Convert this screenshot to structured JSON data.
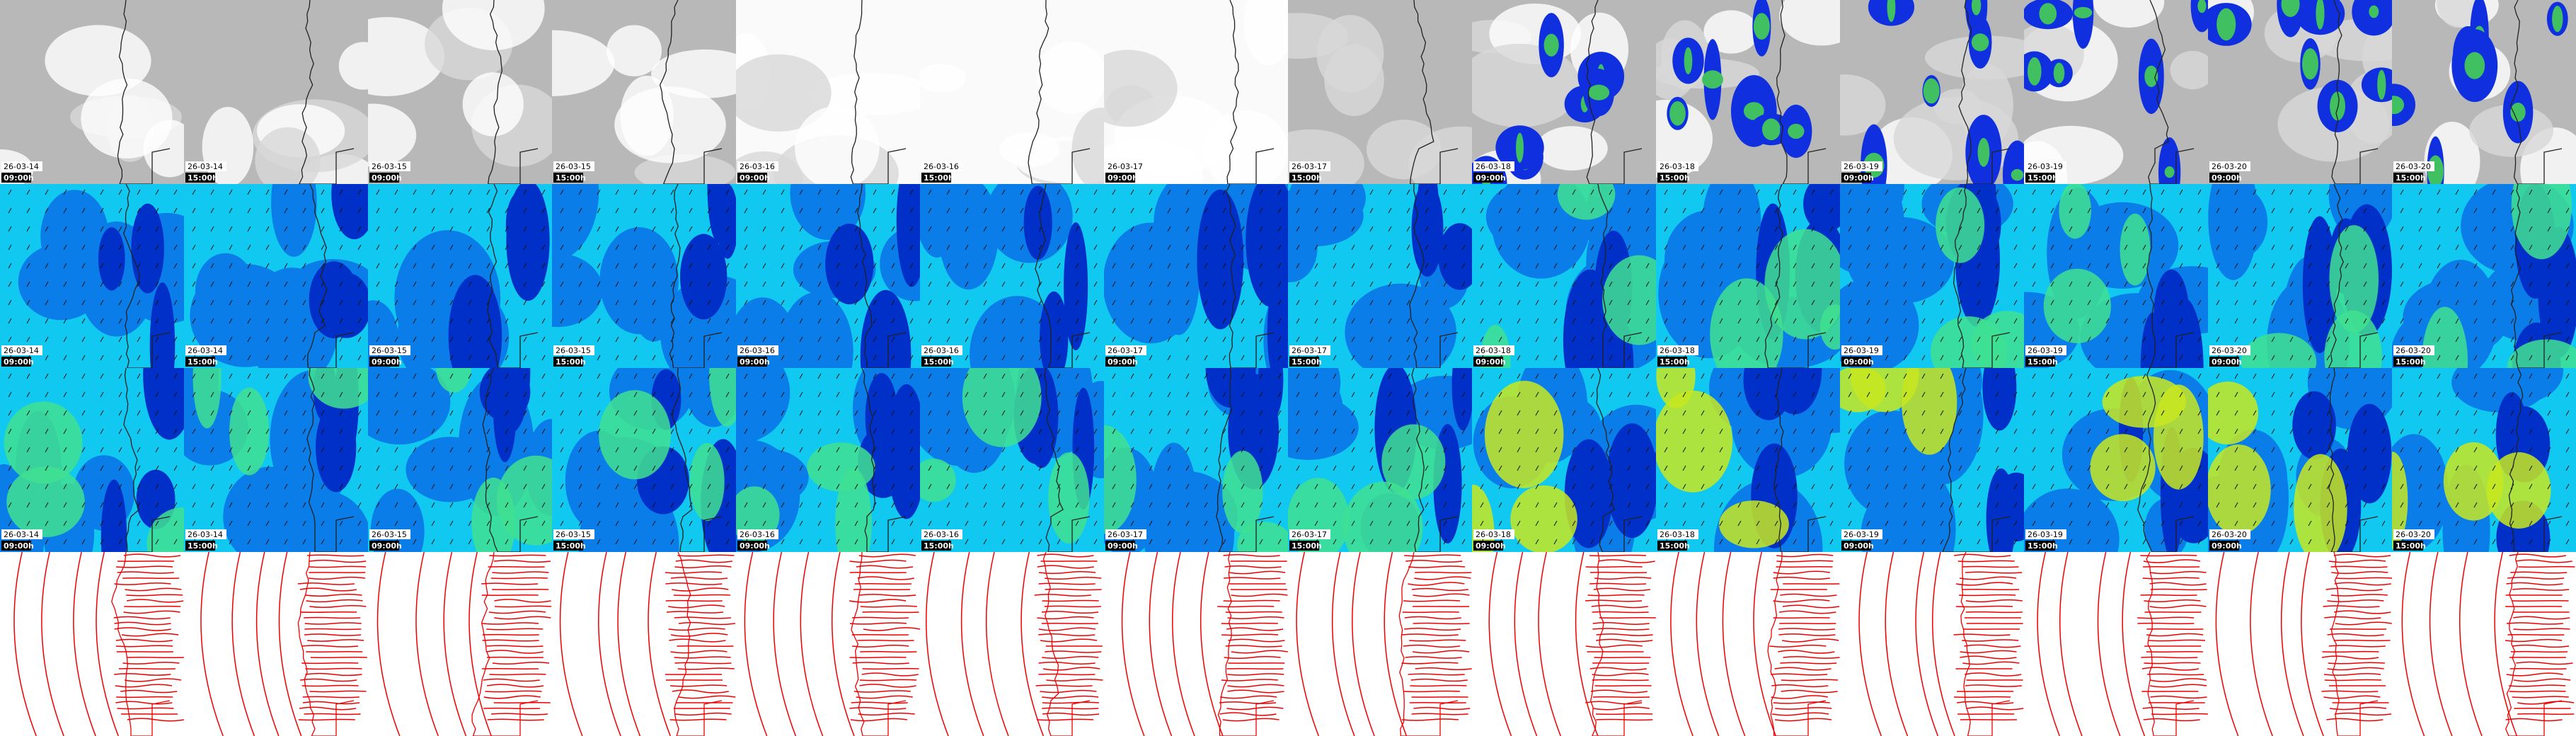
{
  "frames": [
    {
      "date": "26-03-14",
      "time": "09:00h"
    },
    {
      "date": "26-03-14",
      "time": "15:00h"
    },
    {
      "date": "26-03-15",
      "time": "09:00h"
    },
    {
      "date": "26-03-15",
      "time": "15:00h"
    },
    {
      "date": "26-03-16",
      "time": "09:00h"
    },
    {
      "date": "26-03-16",
      "time": "15:00h"
    },
    {
      "date": "26-03-17",
      "time": "09:00h"
    },
    {
      "date": "26-03-17",
      "time": "15:00h"
    },
    {
      "date": "26-03-18",
      "time": "09:00h"
    },
    {
      "date": "26-03-18",
      "time": "15:00h"
    },
    {
      "date": "26-03-19",
      "time": "09:00h"
    },
    {
      "date": "26-03-19",
      "time": "15:00h"
    },
    {
      "date": "26-03-20",
      "time": "09:00h"
    },
    {
      "date": "26-03-20",
      "time": "15:00h"
    }
  ]
}
